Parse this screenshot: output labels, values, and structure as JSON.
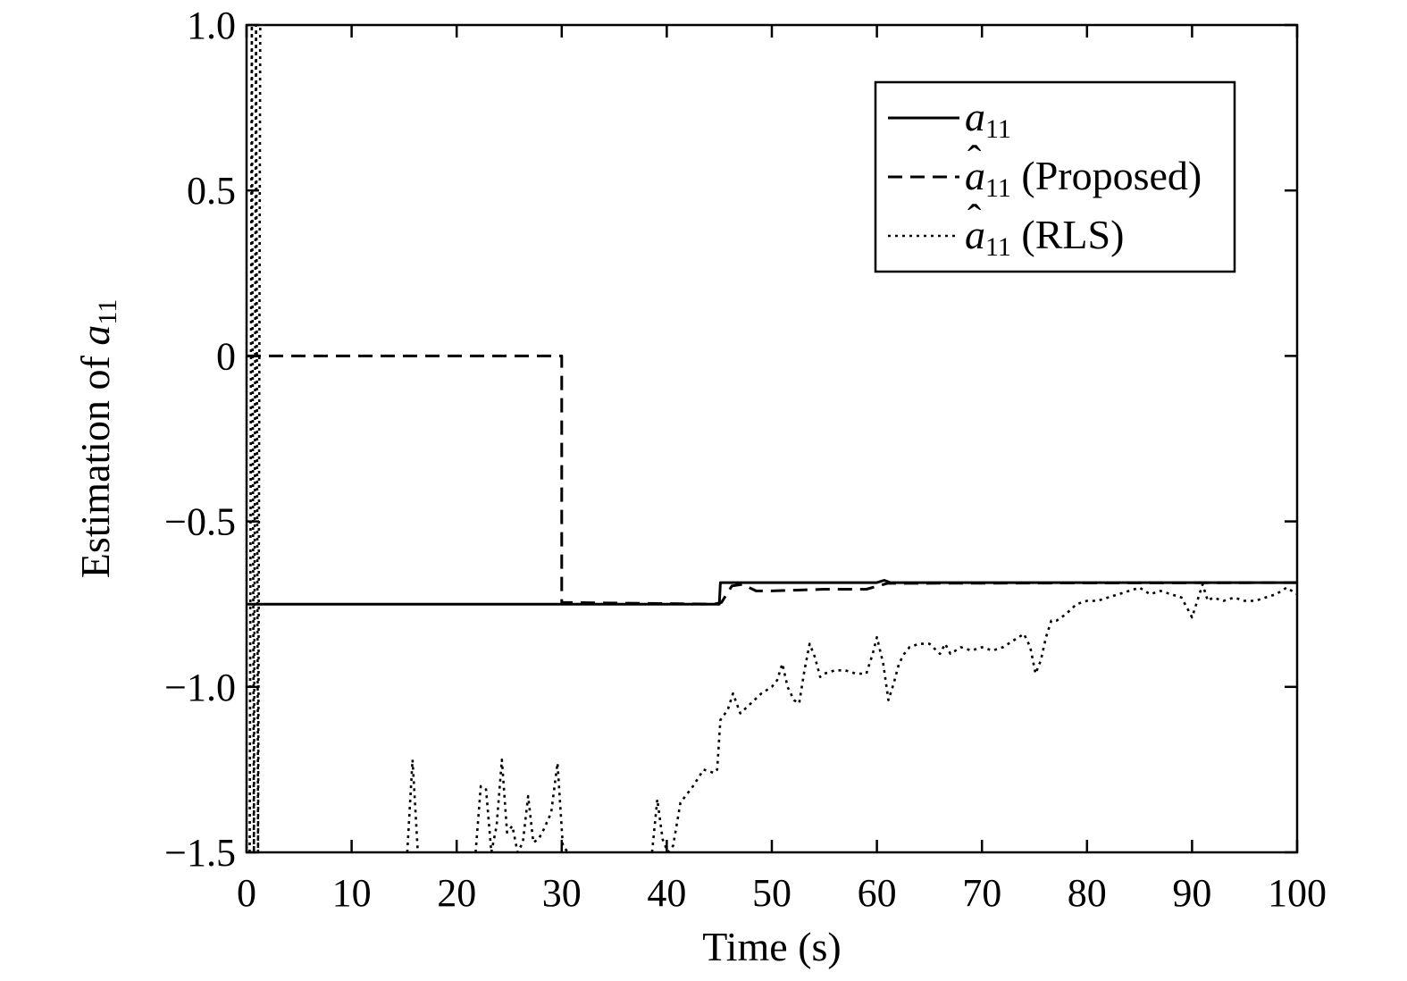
{
  "chart_data": {
    "type": "line",
    "title": "",
    "xlabel": "Time (s)",
    "ylabel": {
      "prefix": "Estimation of ",
      "symbol": "a",
      "subscript": "11"
    },
    "xlim": [
      0,
      100
    ],
    "ylim": [
      -1.5,
      1.0
    ],
    "x_ticks": [
      0,
      10,
      20,
      30,
      40,
      50,
      60,
      70,
      80,
      90,
      100
    ],
    "x_tick_labels": [
      "0",
      "10",
      "20",
      "30",
      "40",
      "50",
      "60",
      "70",
      "80",
      "90",
      "100"
    ],
    "y_ticks": [
      1.0,
      0.5,
      0,
      -0.5,
      -1.0,
      -1.5
    ],
    "y_tick_labels": [
      "1.0",
      "0.5",
      "0",
      "−0.5",
      "−1.0",
      "−1.5"
    ],
    "grid": false,
    "legend_position": "top-right",
    "series": [
      {
        "name": "a",
        "name_hat": "",
        "name_subscript": "11",
        "name_suffix": "",
        "style": "solid",
        "x": [
          0,
          45,
          45.1,
          60,
          60.7,
          61.3,
          100
        ],
        "y": [
          -0.75,
          -0.75,
          -0.685,
          -0.685,
          -0.678,
          -0.685,
          -0.685
        ]
      },
      {
        "name": "a",
        "name_hat": "ˆ",
        "name_subscript": "11",
        "name_suffix": " (Proposed)",
        "style": "dashed",
        "x": [
          0,
          30,
          30,
          44.5,
          45.2,
          46.2,
          47.2,
          48.5,
          50,
          55,
          59,
          61,
          100
        ],
        "y": [
          0,
          0,
          -0.745,
          -0.75,
          -0.745,
          -0.695,
          -0.69,
          -0.71,
          -0.71,
          -0.705,
          -0.705,
          -0.687,
          -0.685
        ]
      },
      {
        "name": "a",
        "name_hat": "ˆ",
        "name_subscript": "11",
        "name_suffix": " (RLS)",
        "style": "dotted",
        "segments": [
          {
            "x": [
              0.3,
              0.5,
              0.7,
              0.9,
              1.1,
              1.3
            ],
            "y": [
              -1.5,
              1.0,
              -1.5,
              1.0,
              -1.5,
              1.0
            ]
          },
          {
            "x": [
              15.3,
              15.8,
              16.3
            ],
            "y": [
              -1.5,
              -1.22,
              -1.5
            ]
          },
          {
            "x": [
              21.8,
              22.3,
              22.8,
              23.3,
              23.8,
              24.3,
              24.8,
              25.3,
              25.8,
              26.3,
              26.8,
              27.3,
              27.8,
              28.3,
              29,
              29.6,
              30.1,
              30.6
            ],
            "y": [
              -1.5,
              -1.3,
              -1.31,
              -1.5,
              -1.42,
              -1.22,
              -1.44,
              -1.42,
              -1.5,
              -1.47,
              -1.33,
              -1.47,
              -1.46,
              -1.43,
              -1.38,
              -1.23,
              -1.48,
              -1.5
            ]
          },
          {
            "x": [
              38.6,
              39.1,
              39.6,
              40.1,
              40.6,
              41.3,
              42.5,
              43.5,
              44.5,
              44.8,
              45.1,
              45.8,
              46.3,
              47,
              48,
              49,
              50,
              50.5,
              51,
              51.5,
              52.1,
              52.6,
              53.1,
              53.6,
              54.1,
              54.6,
              55,
              56,
              57,
              58,
              59,
              59.6,
              60,
              60.6,
              61.1,
              61.6,
              62.1,
              62.6,
              63.1,
              64,
              65,
              66,
              66.5,
              67,
              68,
              69,
              70,
              71,
              72,
              73,
              74,
              74.6,
              75.1,
              75.6,
              76.1,
              76.6,
              77.1,
              78,
              79,
              80,
              81,
              82,
              83,
              84,
              85,
              86,
              87,
              88,
              89,
              90,
              91,
              91.5,
              92,
              93,
              94,
              95,
              96,
              97,
              98,
              99,
              100
            ],
            "y": [
              -1.5,
              -1.34,
              -1.46,
              -1.5,
              -1.48,
              -1.35,
              -1.3,
              -1.25,
              -1.26,
              -1.25,
              -1.1,
              -1.07,
              -1.02,
              -1.08,
              -1.05,
              -1.02,
              -1.0,
              -0.98,
              -0.93,
              -1.0,
              -1.04,
              -1.05,
              -0.95,
              -0.87,
              -0.91,
              -0.97,
              -0.96,
              -0.95,
              -0.95,
              -0.96,
              -0.96,
              -0.9,
              -0.85,
              -0.93,
              -1.04,
              -0.99,
              -0.93,
              -0.9,
              -0.88,
              -0.87,
              -0.87,
              -0.9,
              -0.87,
              -0.9,
              -0.88,
              -0.89,
              -0.88,
              -0.89,
              -0.88,
              -0.86,
              -0.84,
              -0.88,
              -0.96,
              -0.92,
              -0.85,
              -0.8,
              -0.8,
              -0.78,
              -0.75,
              -0.74,
              -0.74,
              -0.73,
              -0.72,
              -0.71,
              -0.7,
              -0.72,
              -0.71,
              -0.72,
              -0.73,
              -0.79,
              -0.69,
              -0.74,
              -0.73,
              -0.74,
              -0.73,
              -0.74,
              -0.74,
              -0.73,
              -0.72,
              -0.7,
              -0.72
            ]
          }
        ]
      }
    ]
  }
}
